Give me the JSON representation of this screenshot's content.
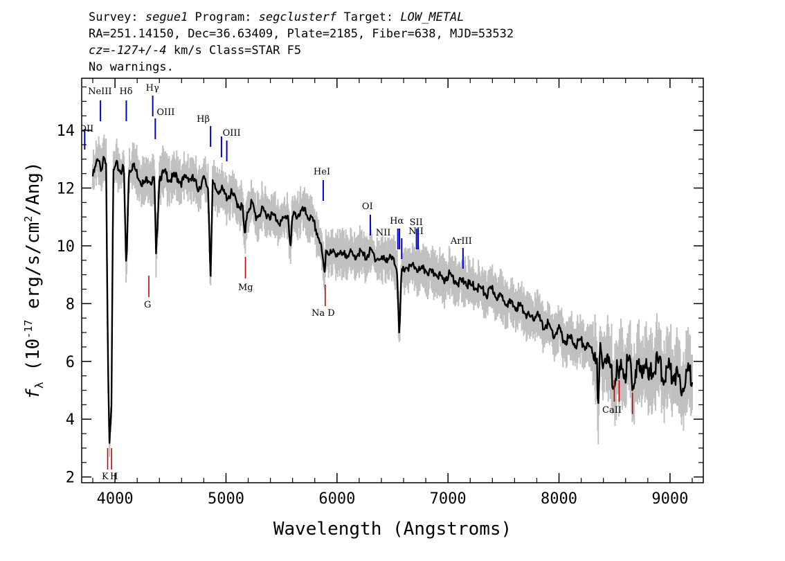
{
  "header": {
    "line1": [
      {
        "text": "Survey: ",
        "italic": false
      },
      {
        "text": "segue1",
        "italic": true
      },
      {
        "text": " Program: ",
        "italic": false
      },
      {
        "text": "segclusterf",
        "italic": true
      },
      {
        "text": " Target: ",
        "italic": false
      },
      {
        "text": "LOW_METAL",
        "italic": true
      }
    ],
    "line2": "RA=251.14150, Dec=36.63409, Plate=2185, Fiber=638, MJD=53532",
    "line3": [
      {
        "text": "cz=-127+/-4",
        "italic": true
      },
      {
        "text": " km/s Class=STAR F5",
        "italic": false
      }
    ],
    "line4": "No warnings."
  },
  "chart_data": {
    "type": "line",
    "xlabel": "Wavelength (Angstroms)",
    "ylabel_parts": {
      "f": "f",
      "sub": "λ",
      "mid": " (10",
      "exp": "-17",
      "tail": " erg/s/cm",
      "exp2": "2",
      "end": "/Ang)"
    },
    "xlim": [
      3700,
      9300
    ],
    "ylim": [
      1.8,
      15.8
    ],
    "xticks": [
      4000,
      5000,
      6000,
      7000,
      8000,
      9000
    ],
    "yticks": [
      2,
      4,
      6,
      8,
      10,
      12,
      14
    ],
    "colors": {
      "flux": "#000000",
      "error_band": "#c0c0c0",
      "emission": "#0000cc",
      "absorption": "#cc0000"
    },
    "series": [
      {
        "role": "flux",
        "x": [
          3800,
          3825,
          3850,
          3880,
          3900,
          3920,
          3935,
          3950,
          3968,
          3985,
          4010,
          4050,
          4080,
          4102,
          4125,
          4160,
          4200,
          4230,
          4260,
          4300,
          4330,
          4355,
          4370,
          4400,
          4450,
          4500,
          4550,
          4600,
          4650,
          4700,
          4750,
          4800,
          4840,
          4861,
          4880,
          4920,
          4950,
          5000,
          5050,
          5100,
          5150,
          5170,
          5190,
          5230,
          5270,
          5320,
          5380,
          5440,
          5500,
          5560,
          5580,
          5600,
          5650,
          5700,
          5750,
          5800,
          5850,
          5890,
          5900,
          5950,
          6000,
          6050,
          6100,
          6150,
          6200,
          6250,
          6300,
          6350,
          6400,
          6450,
          6500,
          6540,
          6563,
          6580,
          6620,
          6650,
          6700,
          6750,
          6800,
          6850,
          6900,
          6950,
          7000,
          7050,
          7100,
          7150,
          7200,
          7250,
          7300,
          7350,
          7400,
          7450,
          7500,
          7550,
          7600,
          7650,
          7700,
          7750,
          7800,
          7850,
          7900,
          7950,
          8000,
          8050,
          8100,
          8150,
          8200,
          8250,
          8300,
          8340,
          8350,
          8370,
          8400,
          8450,
          8498,
          8520,
          8542,
          8570,
          8600,
          8640,
          8662,
          8690,
          8730,
          8770,
          8810,
          8850,
          8900,
          8950,
          9000,
          9050,
          9100,
          9150,
          9200
        ],
        "y": [
          12.4,
          12.7,
          13.1,
          12.6,
          13.0,
          12.7,
          6.5,
          3.3,
          4.6,
          12.5,
          12.8,
          12.6,
          12.7,
          9.1,
          12.6,
          12.8,
          12.5,
          12.3,
          12.1,
          12.4,
          12.2,
          12.3,
          9.6,
          12.4,
          12.5,
          12.3,
          12.4,
          12.2,
          12.4,
          12.3,
          12.0,
          12.3,
          12.0,
          8.9,
          12.1,
          11.9,
          12.0,
          11.7,
          11.8,
          11.5,
          11.3,
          10.2,
          11.2,
          11.5,
          11.0,
          11.2,
          11.1,
          11.0,
          10.8,
          11.1,
          9.9,
          11.0,
          11.1,
          11.2,
          11.0,
          10.7,
          10.1,
          9.0,
          9.9,
          9.7,
          9.8,
          9.6,
          9.8,
          9.6,
          9.8,
          9.6,
          9.8,
          9.6,
          9.5,
          9.6,
          9.5,
          9.3,
          6.8,
          9.0,
          9.3,
          9.2,
          9.3,
          9.1,
          9.2,
          9.0,
          9.1,
          8.8,
          9.0,
          8.9,
          8.7,
          8.8,
          8.6,
          8.6,
          8.5,
          8.3,
          8.5,
          8.2,
          8.2,
          8.0,
          7.9,
          7.9,
          7.7,
          7.4,
          7.7,
          7.2,
          7.3,
          6.9,
          7.1,
          6.7,
          6.8,
          6.6,
          6.7,
          6.5,
          6.4,
          6.3,
          4.0,
          6.2,
          6.2,
          5.9,
          5.3,
          5.9,
          5.3,
          5.9,
          5.7,
          6.0,
          5.1,
          5.8,
          5.6,
          6.1,
          5.3,
          5.9,
          5.9,
          5.5,
          5.7,
          5.6,
          5.2,
          5.5,
          5.6
        ]
      }
    ],
    "emission_lines": [
      {
        "label": "OII",
        "wave": 3727
      },
      {
        "label": "NeIII",
        "wave": 3869
      },
      {
        "label": "Hδ",
        "wave": 4102
      },
      {
        "label": "Hγ",
        "wave": 4340
      },
      {
        "label": "OIII",
        "wave": 4363
      },
      {
        "label": "Hβ",
        "wave": 4861
      },
      {
        "label": "OIII",
        "wave": 4959
      },
      {
        "label": "OIII",
        "wave": 5007
      },
      {
        "label": "HeI",
        "wave": 5876
      },
      {
        "label": "OI",
        "wave": 6300
      },
      {
        "label": "NII",
        "wave": 6548
      },
      {
        "label": "Hα",
        "wave": 6563
      },
      {
        "label": "NII",
        "wave": 6583
      },
      {
        "label": "SII",
        "wave": 6716
      },
      {
        "label": "SII",
        "wave": 6731
      },
      {
        "label": "ArIII",
        "wave": 7135
      }
    ],
    "absorption_lines": [
      {
        "label": "K",
        "wave": 3934
      },
      {
        "label": "H",
        "wave": 3969
      },
      {
        "label": "G",
        "wave": 4305
      },
      {
        "label": "Mg",
        "wave": 5175
      },
      {
        "label": "Na D",
        "wave": 5894
      },
      {
        "label": "CaII",
        "wave": 8498
      },
      {
        "label": "CaII",
        "wave": 8542
      },
      {
        "label": "CaII",
        "wave": 8662
      }
    ]
  }
}
